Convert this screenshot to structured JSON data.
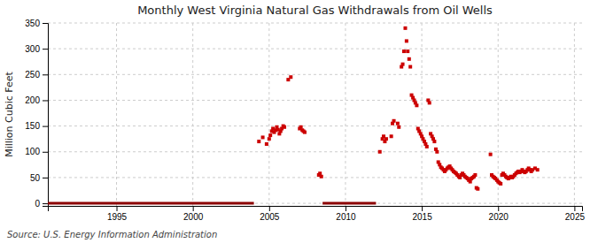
{
  "chart_data": {
    "type": "scatter",
    "title": "Monthly West Virginia Natural Gas Withdrawals from Oil Wells",
    "ylabel": "Million Cubic Feet",
    "annotations": [
      "Source: U.S. Energy Information Administration"
    ],
    "xlim": [
      1990.5,
      2025.5
    ],
    "ylim": [
      -5,
      350
    ],
    "xticks": [
      1995,
      2000,
      2005,
      2010,
      2015,
      2020,
      2025
    ],
    "yticks": [
      0,
      50,
      100,
      150,
      200,
      250,
      300,
      350
    ],
    "grid": true,
    "series": [
      {
        "type": "scatter",
        "marker": "square",
        "color": "#cc0000",
        "x": [
          2004.33,
          2004.58,
          2004.83,
          2005.0,
          2005.08,
          2005.17,
          2005.25,
          2005.33,
          2005.42,
          2005.5,
          2005.58,
          2005.67,
          2005.75,
          2005.83,
          2005.92,
          2006.0,
          2006.25,
          2006.42,
          2007.0,
          2007.08,
          2007.17,
          2007.25,
          2007.33,
          2008.25,
          2008.33,
          2008.42,
          2012.25,
          2012.42,
          2012.5,
          2012.58,
          2012.67,
          2013.0,
          2013.08,
          2013.17,
          2013.42,
          2013.5,
          2013.67,
          2013.75,
          2013.83,
          2013.92,
          2014.0,
          2014.08,
          2014.17,
          2014.25,
          2014.33,
          2014.42,
          2014.5,
          2014.58,
          2014.67,
          2014.75,
          2014.83,
          2014.92,
          2015.0,
          2015.08,
          2015.17,
          2015.25,
          2015.33,
          2015.42,
          2015.5,
          2015.58,
          2015.67,
          2015.75,
          2015.83,
          2015.92,
          2016.0,
          2016.08,
          2016.17,
          2016.25,
          2016.33,
          2016.42,
          2016.5,
          2016.58,
          2016.67,
          2016.75,
          2016.83,
          2016.92,
          2017.0,
          2017.08,
          2017.17,
          2017.25,
          2017.33,
          2017.42,
          2017.5,
          2017.58,
          2017.67,
          2017.75,
          2017.83,
          2017.92,
          2018.0,
          2018.08,
          2018.17,
          2018.25,
          2018.33,
          2018.42,
          2018.5,
          2018.58,
          2018.67,
          2019.5,
          2019.58,
          2019.67,
          2019.75,
          2019.83,
          2019.92,
          2020.0,
          2020.08,
          2020.17,
          2020.25,
          2020.33,
          2020.42,
          2020.5,
          2020.58,
          2020.67,
          2020.75,
          2020.83,
          2020.92,
          2021.0,
          2021.08,
          2021.17,
          2021.25,
          2021.33,
          2021.42,
          2021.5,
          2021.58,
          2021.67,
          2021.75,
          2021.83,
          2021.92,
          2022.0,
          2022.08,
          2022.17,
          2022.25,
          2022.42,
          2022.58
        ],
        "values": [
          120,
          128,
          115,
          125,
          132,
          140,
          145,
          138,
          142,
          148,
          143,
          135,
          140,
          145,
          150,
          148,
          240,
          245,
          145,
          148,
          142,
          140,
          138,
          55,
          58,
          52,
          100,
          125,
          130,
          120,
          125,
          130,
          155,
          160,
          155,
          148,
          265,
          270,
          295,
          340,
          315,
          295,
          280,
          265,
          210,
          205,
          200,
          195,
          190,
          145,
          140,
          135,
          130,
          125,
          120,
          115,
          110,
          200,
          195,
          135,
          130,
          125,
          120,
          105,
          100,
          80,
          75,
          70,
          68,
          65,
          62,
          65,
          68,
          70,
          72,
          68,
          65,
          62,
          60,
          58,
          55,
          52,
          50,
          55,
          58,
          55,
          52,
          50,
          48,
          45,
          42,
          48,
          50,
          52,
          55,
          30,
          28,
          95,
          55,
          52,
          50,
          48,
          45,
          42,
          40,
          38,
          55,
          58,
          55,
          52,
          50,
          48,
          50,
          52,
          50,
          52,
          55,
          58,
          60,
          62,
          60,
          62,
          65,
          62,
          60,
          62,
          65,
          68,
          65,
          62,
          65,
          68,
          65
        ]
      },
      {
        "type": "line",
        "color": "#8b0000",
        "x": [
          1990.5,
          2004.0
        ],
        "values": [
          0,
          0
        ]
      },
      {
        "type": "line",
        "color": "#8b0000",
        "x": [
          2008.5,
          2012.0
        ],
        "values": [
          0,
          0
        ]
      }
    ]
  }
}
